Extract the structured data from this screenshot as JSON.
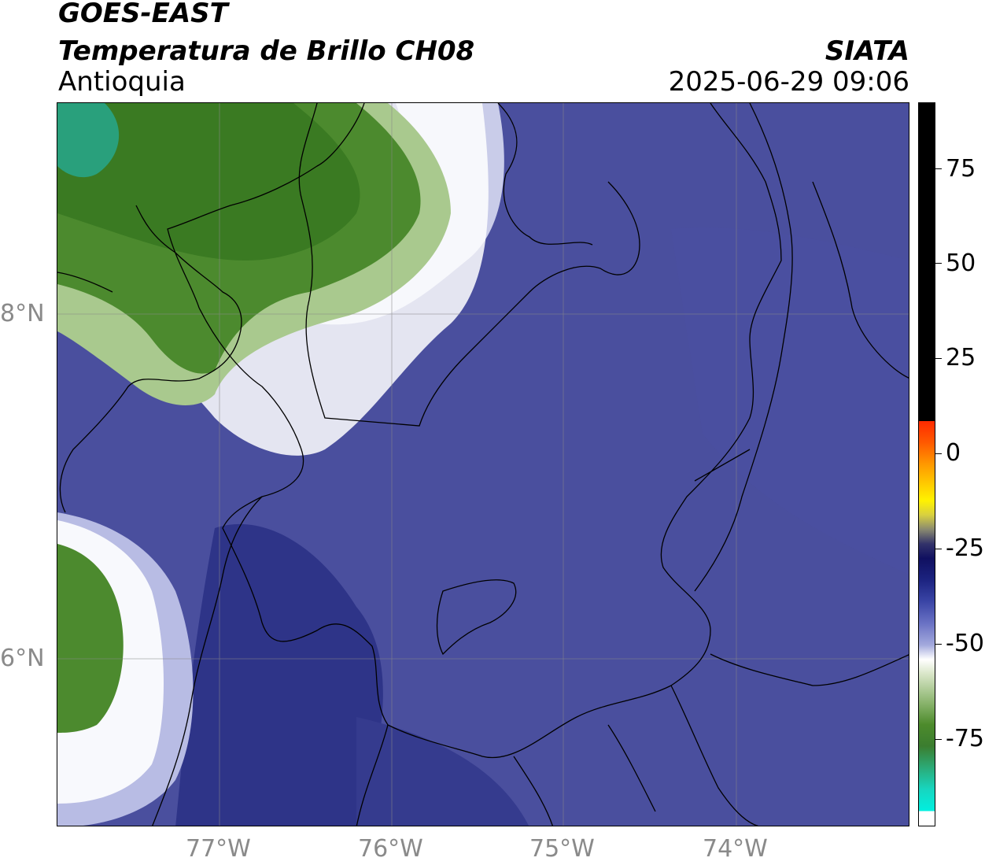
{
  "header": {
    "satellite": "GOES-EAST",
    "product": "Temperatura de Brillo CH08",
    "region": "Antioquia",
    "agency": "SIATA",
    "timestamp": "2025-06-29 09:06"
  },
  "map": {
    "lat_labels": [
      "8°N",
      "6°N"
    ],
    "lon_labels": [
      "77°W",
      "76°W",
      "75°W",
      "74°W"
    ],
    "field_colors": {
      "cold_deep": "#2b3185",
      "cold_mid": "#4a4f9e",
      "cold_light": "#7c83c6",
      "transition": "#ffffff",
      "warm_light": "#a9c98e",
      "warm_green": "#3f7f24",
      "warmest": "#27a07a"
    }
  },
  "colorbar": {
    "tick_labels": [
      "75",
      "50",
      "25",
      "0",
      "-25",
      "-50",
      "-75"
    ]
  }
}
